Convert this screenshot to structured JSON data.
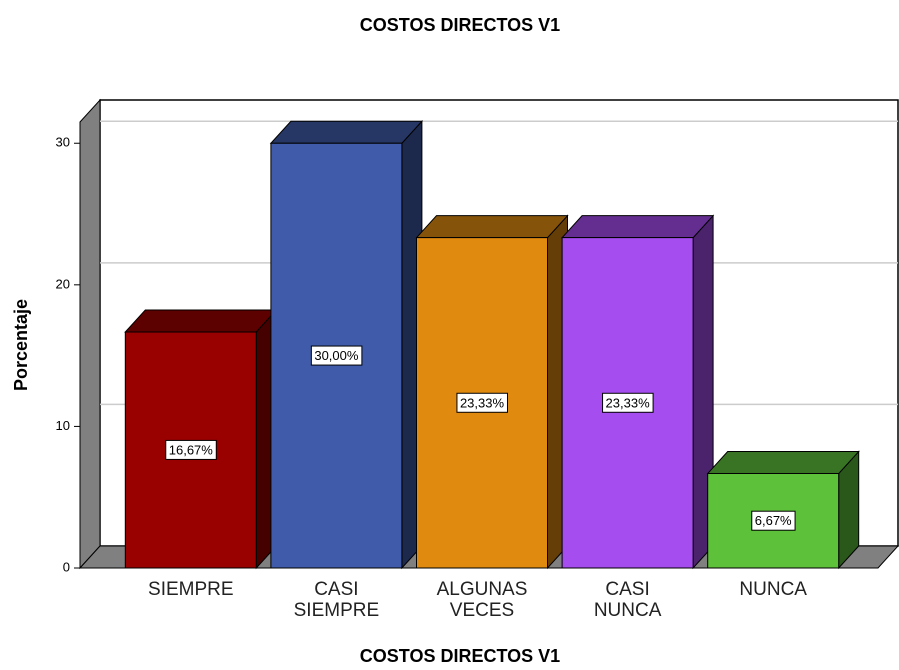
{
  "chart_data": {
    "type": "bar3d",
    "title": "COSTOS DIRECTOS V1",
    "x_label": "COSTOS DIRECTOS V1",
    "y_label": "Porcentaje",
    "categories": [
      "SIEMPRE",
      "CASI SIEMPRE",
      "ALGUNAS VECES",
      "CASI NUNCA",
      "NUNCA"
    ],
    "values": [
      16.67,
      30.0,
      23.33,
      23.33,
      6.67
    ],
    "value_labels": [
      "16,67%",
      "30,00%",
      "23,33%",
      "23,33%",
      "6,67%"
    ],
    "colors": [
      "#990000",
      "#3f5ba9",
      "#e08a10",
      "#a64df0",
      "#5ec13a"
    ],
    "ylim": [
      0,
      31.5
    ],
    "yticks": [
      0,
      10,
      20,
      30
    ],
    "grid": true
  }
}
